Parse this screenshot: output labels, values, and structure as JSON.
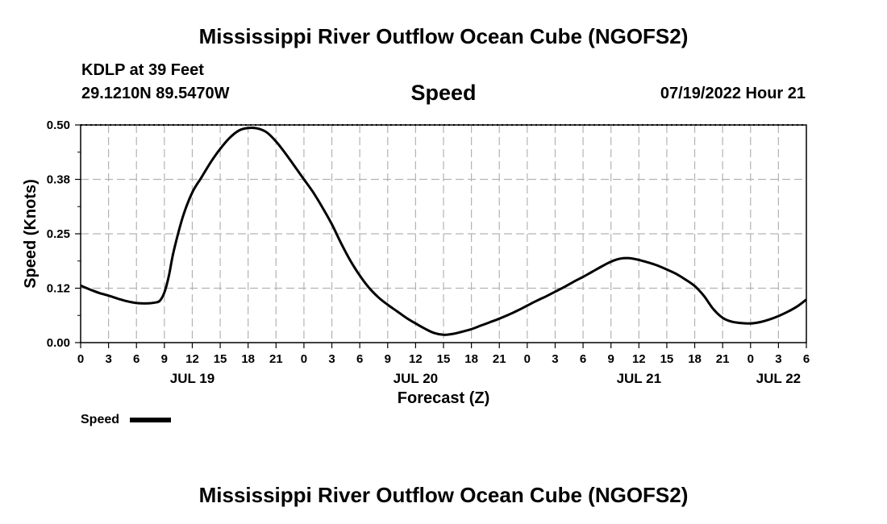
{
  "header": {
    "title": "Mississippi River Outflow Ocean Cube (NGOFS2)",
    "station": "KDLP at 39 Feet",
    "coords": "29.1210N  89.5470W",
    "variable": "Speed",
    "datetime": "07/19/2022 Hour 21"
  },
  "footer": {
    "title": "Mississippi River Outflow Ocean Cube (NGOFS2)"
  },
  "chart_data": {
    "type": "line",
    "title": "Speed",
    "xlabel": "Forecast (Z)",
    "ylabel": "Speed (Knots)",
    "xunit": "hours since 2022-07-19 00Z",
    "xlim": [
      0,
      78
    ],
    "ylim": [
      0,
      0.5
    ],
    "yticks": [
      0,
      0.125,
      0.25,
      0.375,
      0.5
    ],
    "ytick_labels": [
      "0.00",
      "0.12",
      "0.25",
      "0.38",
      "0.50"
    ],
    "xticks": [
      0,
      3,
      6,
      9,
      12,
      15,
      18,
      21,
      24,
      27,
      30,
      33,
      36,
      39,
      42,
      45,
      48,
      51,
      54,
      57,
      60,
      63,
      66,
      69,
      72,
      75,
      78
    ],
    "xtick_labels": [
      "0",
      "3",
      "6",
      "9",
      "12",
      "15",
      "18",
      "21",
      "0",
      "3",
      "6",
      "9",
      "12",
      "15",
      "18",
      "21",
      "0",
      "3",
      "6",
      "9",
      "12",
      "15",
      "18",
      "21",
      "0",
      "3",
      "6"
    ],
    "date_labels": [
      {
        "x": 12,
        "label": "JUL 19"
      },
      {
        "x": 36,
        "label": "JUL 20"
      },
      {
        "x": 60,
        "label": "JUL 21"
      },
      {
        "x": 75,
        "label": "JUL 22"
      }
    ],
    "grid": true,
    "legend": {
      "label": "Speed",
      "position": "bottom-left"
    },
    "series": [
      {
        "name": "Speed",
        "color": "#000000",
        "x": [
          0,
          1,
          2,
          3,
          4,
          5,
          6,
          7,
          8,
          8.5,
          9,
          9.5,
          10,
          11,
          12,
          13,
          14,
          15,
          16,
          17,
          18,
          19,
          20,
          21,
          22,
          23,
          24,
          25,
          26,
          27,
          28,
          29,
          30,
          31,
          32,
          33,
          34,
          35,
          36,
          37,
          38,
          39,
          40,
          41,
          42,
          43,
          44,
          45,
          46,
          47,
          48,
          49,
          50,
          51,
          52,
          53,
          54,
          55,
          56,
          57,
          58,
          59,
          60,
          61,
          62,
          63,
          64,
          65,
          66,
          67,
          68,
          69,
          70,
          71,
          72,
          73,
          74,
          75,
          76,
          77,
          78
        ],
        "values": [
          0.131,
          0.122,
          0.114,
          0.108,
          0.101,
          0.095,
          0.091,
          0.09,
          0.092,
          0.096,
          0.115,
          0.155,
          0.21,
          0.29,
          0.345,
          0.38,
          0.415,
          0.445,
          0.47,
          0.487,
          0.493,
          0.492,
          0.483,
          0.462,
          0.435,
          0.405,
          0.375,
          0.345,
          0.31,
          0.272,
          0.228,
          0.188,
          0.154,
          0.126,
          0.104,
          0.087,
          0.072,
          0.057,
          0.044,
          0.032,
          0.022,
          0.018,
          0.02,
          0.025,
          0.031,
          0.039,
          0.047,
          0.055,
          0.064,
          0.074,
          0.085,
          0.096,
          0.106,
          0.117,
          0.128,
          0.14,
          0.151,
          0.163,
          0.175,
          0.186,
          0.193,
          0.194,
          0.19,
          0.184,
          0.177,
          0.168,
          0.158,
          0.145,
          0.13,
          0.107,
          0.077,
          0.057,
          0.048,
          0.045,
          0.044,
          0.047,
          0.053,
          0.061,
          0.071,
          0.083,
          0.099
        ]
      }
    ]
  }
}
